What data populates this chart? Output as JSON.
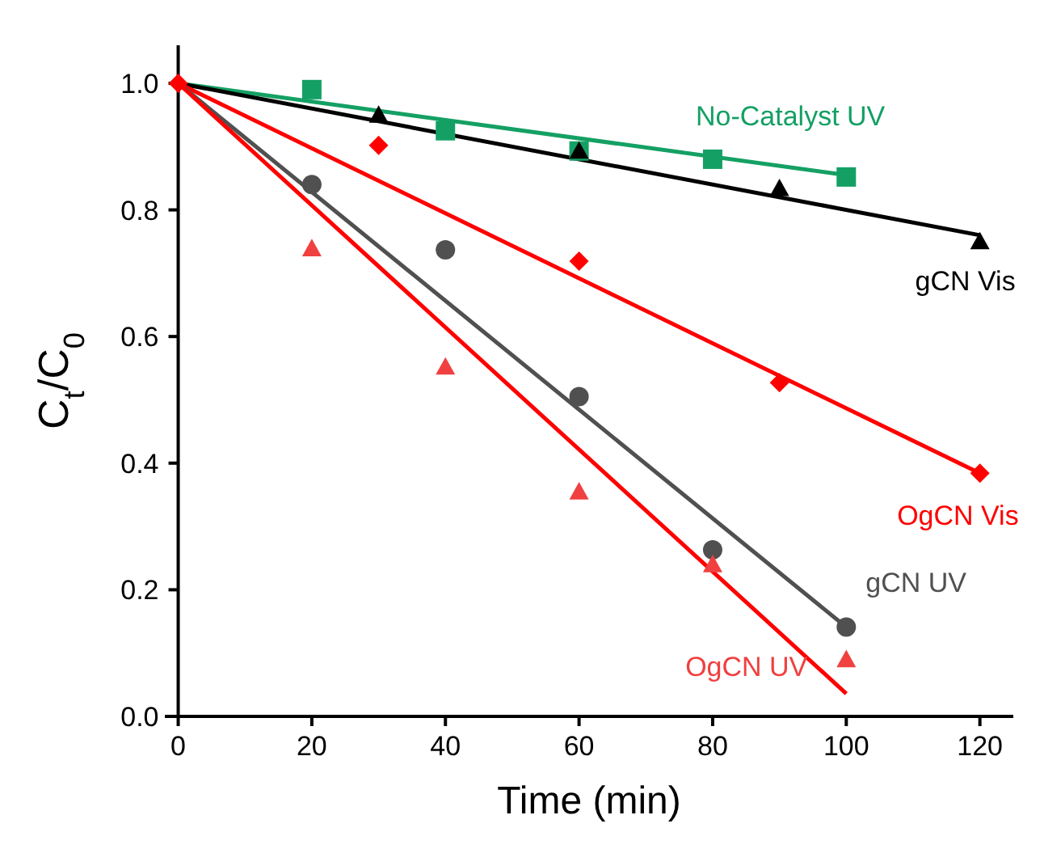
{
  "chart_data": {
    "type": "scatter",
    "xlabel": "Time (min)",
    "ylabel": "C$_{t}$/C$_{0}$",
    "xlim": [
      -2,
      125
    ],
    "ylim": [
      0,
      1.06
    ],
    "xticks": [
      0,
      20,
      40,
      60,
      80,
      100,
      120
    ],
    "yticks": [
      {
        "value": 0,
        "label": "0.0"
      },
      0.2,
      0.4,
      0.6,
      0.8,
      {
        "value": 1,
        "label": "1.0"
      }
    ],
    "grid": false,
    "series": [
      {
        "name": "No-Catalyst UV",
        "color": "#14a064",
        "marker": "square",
        "x": [
          20,
          40,
          60,
          80,
          100
        ],
        "values": [
          0.99,
          0.925,
          0.893,
          0.88,
          0.852
        ]
      },
      {
        "name": "gCN Vis",
        "color": "#000000",
        "marker": "triangle",
        "x": [
          30,
          60,
          90,
          120
        ],
        "values": [
          0.95,
          0.893,
          0.834,
          0.75
        ]
      },
      {
        "name": "OgCN Vis",
        "color": "#ff0000",
        "marker": "diamond",
        "x": [
          0,
          30,
          60,
          90,
          120
        ],
        "values": [
          1.0,
          0.902,
          0.719,
          0.527,
          0.384
        ]
      },
      {
        "name": "gCN UV",
        "color": "#505050",
        "marker": "circle",
        "x": [
          20,
          40,
          60,
          80,
          100
        ],
        "values": [
          0.84,
          0.737,
          0.505,
          0.263,
          0.141
        ]
      },
      {
        "name": "OgCN UV",
        "color": "#f04040",
        "marker": "triangle",
        "x": [
          20,
          40,
          60,
          80,
          100
        ],
        "values": [
          0.739,
          0.552,
          0.355,
          0.24,
          0.09
        ]
      },
      {
        "type": "line",
        "color": "#14a064",
        "marker": "none",
        "x": [
          0,
          100
        ],
        "values": [
          1.0,
          0.855
        ]
      },
      {
        "type": "line",
        "color": "#000000",
        "marker": "none",
        "x": [
          0,
          120
        ],
        "values": [
          1.0,
          0.76
        ]
      },
      {
        "type": "line",
        "color": "#ff0000",
        "marker": "none",
        "x": [
          0,
          120
        ],
        "values": [
          1.0,
          0.384
        ]
      },
      {
        "type": "line",
        "color": "#505050",
        "marker": "none",
        "x": [
          0,
          100
        ],
        "values": [
          1.0,
          0.141
        ]
      },
      {
        "type": "line",
        "color": "#ff0000",
        "marker": "none",
        "x": [
          0,
          100
        ],
        "values": [
          1.0,
          0.036
        ]
      }
    ]
  }
}
